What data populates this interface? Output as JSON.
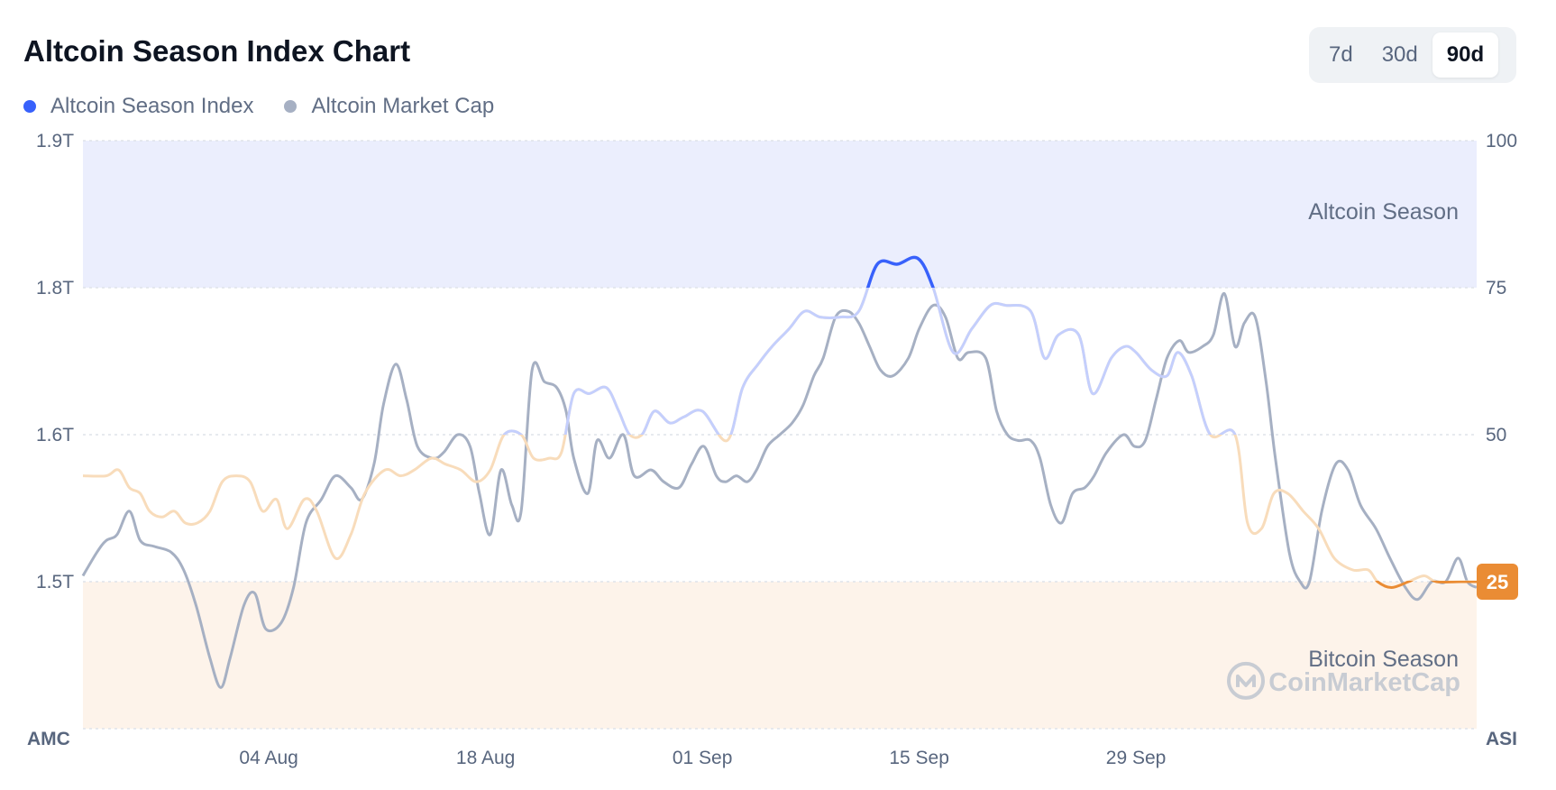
{
  "header": {
    "title": "Altcoin Season Index Chart"
  },
  "range_toggle": {
    "options": [
      "7d",
      "30d",
      "90d"
    ],
    "selected": "90d"
  },
  "colors": {
    "index_line": "#3861fb",
    "index_line_faded_alt": "#c4cffd",
    "index_line_faded_btc": "#f8dcbb",
    "index_line_btc": "#ea8c34",
    "market_cap_line": "#a6b0c3",
    "altcoin_zone": "#ebeefd",
    "bitcoin_zone": "#fdf3ea",
    "badge": "#ea8c34"
  },
  "chart_data": {
    "type": "line",
    "title": "Altcoin Season Index Chart",
    "legend": {
      "placement": "top-left",
      "entries": [
        {
          "name": "Altcoin Season Index",
          "color": "#3861fb"
        },
        {
          "name": "Altcoin Market Cap",
          "color": "#a6b0c3"
        }
      ]
    },
    "left_axis": {
      "label": "AMC",
      "ticks": [
        "1.9T",
        "1.8T",
        "1.6T",
        "1.5T"
      ],
      "tick_index_values": [
        100,
        75,
        50,
        25
      ],
      "min_index": 0,
      "max_index": 100
    },
    "right_axis": {
      "label": "ASI",
      "ticks": [
        "100",
        "75",
        "50",
        "25"
      ],
      "tick_values": [
        100,
        75,
        50,
        25
      ],
      "min": 0,
      "max": 100
    },
    "x_axis": {
      "ticks": [
        "04 Aug",
        "18 Aug",
        "01 Sep",
        "15 Sep",
        "29 Sep"
      ],
      "tick_days": [
        12,
        26,
        40,
        54,
        68
      ],
      "day_range": [
        0,
        90
      ]
    },
    "zones": [
      {
        "name": "Altcoin Season",
        "from": 75,
        "to": 100
      },
      {
        "name": "Bitcoin Season",
        "from": 0,
        "to": 25
      }
    ],
    "grid": true,
    "current_value": 25,
    "watermark": "CoinMarketCap",
    "series": [
      {
        "name": "Altcoin Season Index",
        "axis": "right",
        "points": [
          [
            0,
            43
          ],
          [
            1.5,
            43
          ],
          [
            2.3,
            44
          ],
          [
            3,
            41
          ],
          [
            3.7,
            40
          ],
          [
            4.3,
            37
          ],
          [
            5.1,
            36
          ],
          [
            5.9,
            37
          ],
          [
            6.6,
            35
          ],
          [
            7.4,
            35
          ],
          [
            8.2,
            37
          ],
          [
            9,
            42
          ],
          [
            9.9,
            43
          ],
          [
            10.8,
            42
          ],
          [
            11.6,
            37
          ],
          [
            12.5,
            39
          ],
          [
            13.2,
            34
          ],
          [
            14.3,
            39
          ],
          [
            15.1,
            37
          ],
          [
            16.3,
            29
          ],
          [
            17.3,
            33
          ],
          [
            18.2,
            40
          ],
          [
            19.5,
            44
          ],
          [
            20.5,
            43
          ],
          [
            21.4,
            44
          ],
          [
            22.5,
            46
          ],
          [
            23.4,
            45
          ],
          [
            24.4,
            44
          ],
          [
            25.4,
            42
          ],
          [
            26.3,
            44
          ],
          [
            27.2,
            50
          ],
          [
            28.3,
            50
          ],
          [
            29.1,
            46
          ],
          [
            30.1,
            46
          ],
          [
            30.9,
            47
          ],
          [
            31.7,
            57
          ],
          [
            32.7,
            57
          ],
          [
            33.8,
            58
          ],
          [
            34.6,
            54
          ],
          [
            35.3,
            50
          ],
          [
            36.1,
            50
          ],
          [
            36.9,
            54
          ],
          [
            37.9,
            52
          ],
          [
            38.8,
            53
          ],
          [
            40,
            54
          ],
          [
            41.6,
            49
          ],
          [
            42.6,
            58
          ],
          [
            43.6,
            62
          ],
          [
            44.5,
            65
          ],
          [
            45.6,
            68
          ],
          [
            46.6,
            71
          ],
          [
            47.6,
            70
          ],
          [
            48.9,
            70
          ],
          [
            50.1,
            71
          ],
          [
            51.3,
            79
          ],
          [
            52.6,
            79
          ],
          [
            53.9,
            80
          ],
          [
            54.9,
            75
          ],
          [
            56.2,
            64
          ],
          [
            57.4,
            68
          ],
          [
            58.6,
            72
          ],
          [
            59.6,
            72
          ],
          [
            61.2,
            71
          ],
          [
            62.1,
            63
          ],
          [
            63,
            67
          ],
          [
            64.3,
            67
          ],
          [
            65.2,
            57
          ],
          [
            66.4,
            63
          ],
          [
            67.3,
            65
          ],
          [
            68,
            64
          ],
          [
            69,
            61
          ],
          [
            70,
            60
          ],
          [
            70.7,
            64
          ],
          [
            71.6,
            60
          ],
          [
            72.8,
            50
          ],
          [
            74.4,
            50
          ],
          [
            75.2,
            35
          ],
          [
            76.1,
            34
          ],
          [
            76.9,
            40
          ],
          [
            77.8,
            40
          ],
          [
            78.8,
            37
          ],
          [
            79.8,
            34
          ],
          [
            80.8,
            29
          ],
          [
            82,
            27
          ],
          [
            83,
            27
          ],
          [
            83.6,
            25
          ],
          [
            84.5,
            24
          ],
          [
            85.6,
            25
          ],
          [
            86.6,
            26
          ],
          [
            87.4,
            25
          ],
          [
            89,
            25
          ],
          [
            90,
            25
          ]
        ]
      },
      {
        "name": "Altcoin Market Cap",
        "axis": "left",
        "points": [
          [
            0,
            26
          ],
          [
            0.9,
            30
          ],
          [
            1.5,
            32
          ],
          [
            2.2,
            33
          ],
          [
            3,
            37
          ],
          [
            3.7,
            32
          ],
          [
            4.6,
            31
          ],
          [
            5.7,
            30
          ],
          [
            6.5,
            27
          ],
          [
            7.3,
            21
          ],
          [
            8.2,
            12
          ],
          [
            8.9,
            7
          ],
          [
            9.5,
            12
          ],
          [
            10.4,
            21
          ],
          [
            11.1,
            23
          ],
          [
            11.8,
            17
          ],
          [
            12.8,
            18
          ],
          [
            13.6,
            24
          ],
          [
            14.4,
            35
          ],
          [
            15.4,
            39
          ],
          [
            16.3,
            43
          ],
          [
            17.3,
            41
          ],
          [
            18,
            39
          ],
          [
            18.8,
            45
          ],
          [
            19.4,
            55
          ],
          [
            20.2,
            62
          ],
          [
            20.9,
            56
          ],
          [
            21.6,
            48
          ],
          [
            22.6,
            46
          ],
          [
            23.3,
            47
          ],
          [
            24.2,
            50
          ],
          [
            25,
            48
          ],
          [
            25.6,
            40
          ],
          [
            26.3,
            33
          ],
          [
            27,
            44
          ],
          [
            27.7,
            38
          ],
          [
            28.3,
            37
          ],
          [
            29,
            61
          ],
          [
            29.8,
            59
          ],
          [
            30.6,
            58
          ],
          [
            31.2,
            54
          ],
          [
            31.7,
            46
          ],
          [
            32.6,
            40
          ],
          [
            33.2,
            49
          ],
          [
            34,
            46
          ],
          [
            34.9,
            50
          ],
          [
            35.6,
            43
          ],
          [
            36.7,
            44
          ],
          [
            37.5,
            42
          ],
          [
            38.5,
            41
          ],
          [
            39.3,
            45
          ],
          [
            40.1,
            48
          ],
          [
            40.9,
            43
          ],
          [
            41.5,
            42
          ],
          [
            42.2,
            43
          ],
          [
            42.9,
            42
          ],
          [
            43.5,
            44
          ],
          [
            44.2,
            48
          ],
          [
            45,
            50
          ],
          [
            45.8,
            52
          ],
          [
            46.5,
            55
          ],
          [
            47.2,
            60
          ],
          [
            47.8,
            63
          ],
          [
            48.6,
            70
          ],
          [
            49.4,
            71
          ],
          [
            50.1,
            69
          ],
          [
            50.8,
            65
          ],
          [
            51.5,
            61
          ],
          [
            52.3,
            60
          ],
          [
            53.3,
            63
          ],
          [
            54,
            68
          ],
          [
            54.9,
            72
          ],
          [
            55.7,
            70
          ],
          [
            56.5,
            63
          ],
          [
            57.2,
            64
          ],
          [
            58.3,
            63
          ],
          [
            59,
            54
          ],
          [
            59.7,
            50
          ],
          [
            60.4,
            49
          ],
          [
            61.2,
            49
          ],
          [
            61.8,
            46
          ],
          [
            62.5,
            38
          ],
          [
            63.2,
            35
          ],
          [
            63.9,
            40
          ],
          [
            64.7,
            41
          ],
          [
            65.3,
            43
          ],
          [
            66.1,
            47
          ],
          [
            67.2,
            50
          ],
          [
            67.9,
            48
          ],
          [
            68.6,
            49
          ],
          [
            69.3,
            56
          ],
          [
            70,
            63
          ],
          [
            70.8,
            66
          ],
          [
            71.4,
            64
          ],
          [
            72.3,
            65
          ],
          [
            73,
            67
          ],
          [
            73.7,
            74
          ],
          [
            74.4,
            65
          ],
          [
            75,
            69
          ],
          [
            75.7,
            70
          ],
          [
            76.4,
            59
          ],
          [
            77,
            46
          ],
          [
            77.9,
            30
          ],
          [
            78.6,
            25
          ],
          [
            79.2,
            25
          ],
          [
            80,
            37
          ],
          [
            80.9,
            45
          ],
          [
            81.7,
            44
          ],
          [
            82.5,
            38
          ],
          [
            83.5,
            34
          ],
          [
            84.4,
            29
          ],
          [
            85.4,
            24
          ],
          [
            86.2,
            22
          ],
          [
            87.1,
            25
          ],
          [
            88,
            25
          ],
          [
            88.8,
            29
          ],
          [
            89.4,
            25
          ],
          [
            90,
            24
          ]
        ]
      }
    ]
  }
}
